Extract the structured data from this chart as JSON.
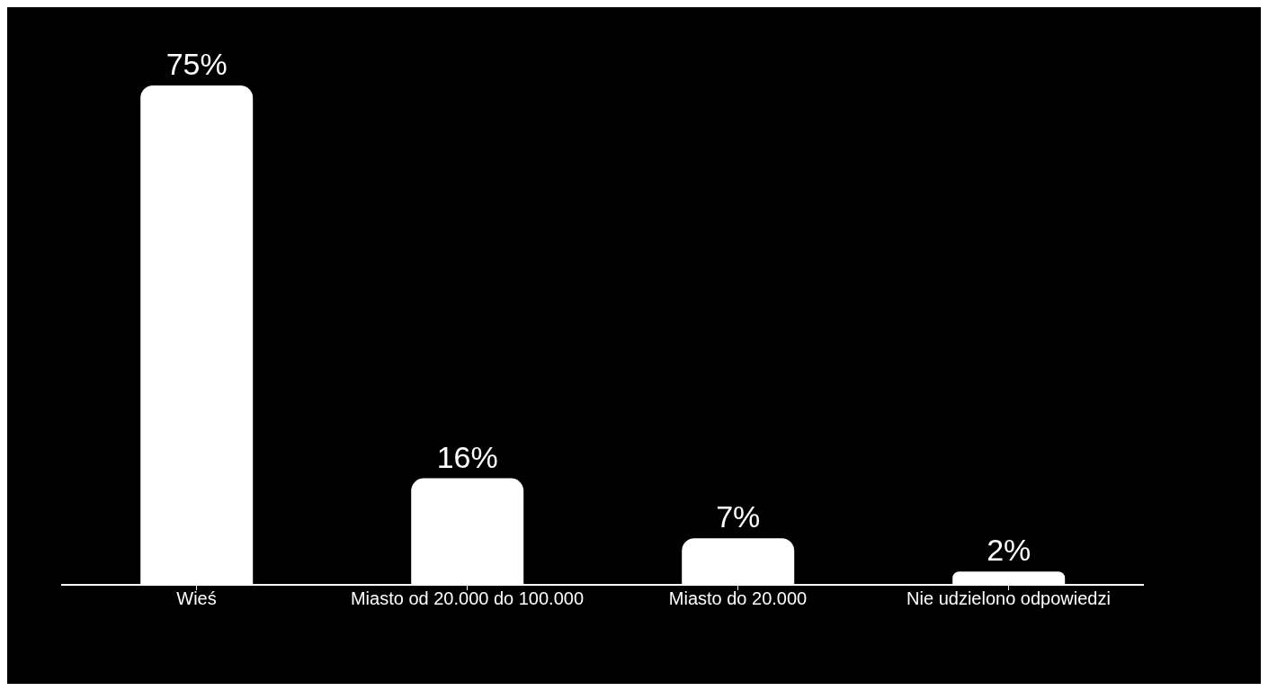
{
  "chart_data": {
    "type": "bar",
    "categories": [
      "Wieś",
      "Miasto od 20.000 do 100.000",
      "Miasto do 20.000",
      "Nie udzielono odpowiedzi"
    ],
    "values": [
      75,
      16,
      7,
      2
    ],
    "value_labels": [
      "75%",
      "16%",
      "7%",
      "2%"
    ],
    "color": "#ffffff"
  }
}
